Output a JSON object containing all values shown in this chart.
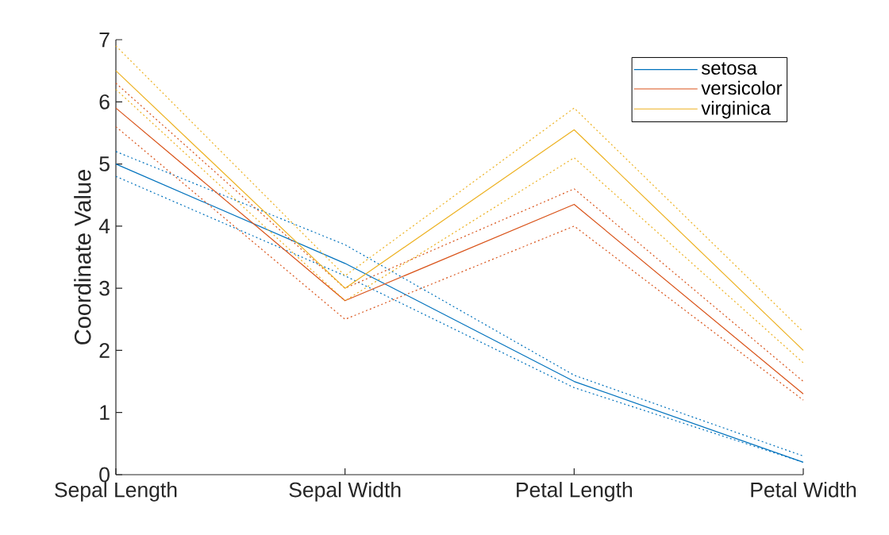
{
  "chart_data": {
    "type": "line",
    "categories": [
      "Sepal Length",
      "Sepal Width",
      "Petal Length",
      "Petal Width"
    ],
    "ylabel": "Coordinate Value",
    "ylim": [
      0,
      7
    ],
    "yticks": [
      0,
      1,
      2,
      3,
      4,
      5,
      6,
      7
    ],
    "legend": "top right",
    "series": [
      {
        "name": "setosa",
        "color": "#0072bd",
        "line_style": "solid",
        "values": [
          5.0,
          3.4,
          1.5,
          0.2
        ]
      },
      {
        "color": "#0072bd",
        "line_style": "dotted",
        "values": [
          4.8,
          3.2,
          1.4,
          0.2
        ]
      },
      {
        "color": "#0072bd",
        "line_style": "dotted",
        "values": [
          5.2,
          3.7,
          1.6,
          0.3
        ]
      },
      {
        "name": "versicolor",
        "color": "#d95319",
        "line_style": "solid",
        "values": [
          5.9,
          2.8,
          4.35,
          1.3
        ]
      },
      {
        "color": "#d95319",
        "line_style": "dotted",
        "values": [
          5.6,
          2.5,
          4.0,
          1.2
        ]
      },
      {
        "color": "#d95319",
        "line_style": "dotted",
        "values": [
          6.3,
          3.0,
          4.6,
          1.5
        ]
      },
      {
        "name": "virginica",
        "color": "#edb120",
        "line_style": "solid",
        "values": [
          6.5,
          3.0,
          5.55,
          2.0
        ]
      },
      {
        "color": "#edb120",
        "line_style": "dotted",
        "values": [
          6.2,
          2.8,
          5.1,
          1.8
        ]
      },
      {
        "color": "#edb120",
        "line_style": "dotted",
        "values": [
          6.9,
          3.2,
          5.9,
          2.3
        ]
      }
    ]
  }
}
